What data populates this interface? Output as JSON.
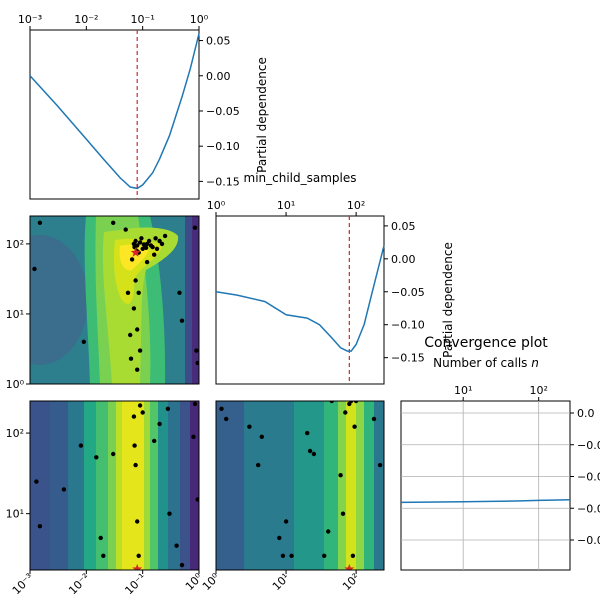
{
  "chart_data": [
    {
      "id": "pd_learning_rate",
      "type": "line",
      "title": "",
      "xlabel": "",
      "ylabel": "Partial dependence",
      "xscale": "log",
      "xlim": [
        0.001,
        1
      ],
      "ylim": [
        -0.175,
        0.065
      ],
      "xticklabels": [
        "10⁻³",
        "10⁻²",
        "10⁻¹",
        "10⁰"
      ],
      "yticklabels": [
        "0.05",
        "0.00",
        "−0.05",
        "−0.10",
        "−0.15"
      ],
      "x": [
        0.001,
        0.003,
        0.01,
        0.02,
        0.04,
        0.06,
        0.08,
        0.1,
        0.15,
        0.2,
        0.3,
        0.5,
        0.7,
        1.0
      ],
      "y": [
        0.0,
        -0.042,
        -0.09,
        -0.118,
        -0.145,
        -0.158,
        -0.16,
        -0.155,
        -0.138,
        -0.118,
        -0.085,
        -0.03,
        0.01,
        0.06
      ],
      "best_x": 0.08,
      "marker_color": "#d62728",
      "line_color": "#1f77b4"
    },
    {
      "id": "pd_min_child_samples",
      "type": "line",
      "title": "min_child_samples",
      "xlabel": "",
      "ylabel": "Partial dependence",
      "xscale": "log",
      "xlim": [
        1,
        250
      ],
      "ylim": [
        -0.19,
        0.065
      ],
      "xticklabels": [
        "10⁰",
        "10¹",
        "10²"
      ],
      "yticklabels": [
        "0.05",
        "0.00",
        "−0.05",
        "−0.10",
        "−0.15"
      ],
      "x": [
        1,
        2,
        5,
        10,
        20,
        30,
        45,
        60,
        75,
        85,
        100,
        130,
        170,
        250
      ],
      "y": [
        -0.05,
        -0.055,
        -0.065,
        -0.085,
        -0.09,
        -0.1,
        -0.12,
        -0.135,
        -0.14,
        -0.14,
        -0.13,
        -0.1,
        -0.05,
        0.02
      ],
      "best_x": 80,
      "marker_color": "#d62728",
      "line_color": "#1f77b4"
    },
    {
      "id": "contour_lr_vs_mcs",
      "type": "heatmap",
      "xscale": "log",
      "yscale": "log",
      "xlim": [
        0.001,
        1
      ],
      "ylim": [
        1,
        250
      ],
      "yticklabels": [
        "10⁰",
        "10¹",
        "10²"
      ],
      "samples": [
        [
          0.0015,
          200
        ],
        [
          0.0012,
          44
        ],
        [
          0.05,
          160
        ],
        [
          0.055,
          20
        ],
        [
          0.06,
          5
        ],
        [
          0.062,
          2.3
        ],
        [
          0.065,
          60
        ],
        [
          0.07,
          100
        ],
        [
          0.072,
          90
        ],
        [
          0.075,
          110
        ],
        [
          0.078,
          80
        ],
        [
          0.08,
          95
        ],
        [
          0.085,
          75
        ],
        [
          0.09,
          105
        ],
        [
          0.095,
          120
        ],
        [
          0.1,
          85
        ],
        [
          0.105,
          98
        ],
        [
          0.11,
          92
        ],
        [
          0.115,
          88
        ],
        [
          0.12,
          100
        ],
        [
          0.13,
          110
        ],
        [
          0.14,
          95
        ],
        [
          0.15,
          90
        ],
        [
          0.16,
          70
        ],
        [
          0.17,
          120
        ],
        [
          0.18,
          85
        ],
        [
          0.2,
          110
        ],
        [
          0.22,
          100
        ],
        [
          0.075,
          30
        ],
        [
          0.085,
          20
        ],
        [
          0.07,
          12
        ],
        [
          0.08,
          6
        ],
        [
          0.09,
          3
        ],
        [
          0.08,
          1.6
        ],
        [
          0.009,
          4
        ],
        [
          0.25,
          130
        ],
        [
          0.45,
          20
        ],
        [
          0.5,
          8
        ],
        [
          0.85,
          170
        ],
        [
          0.9,
          3
        ],
        [
          0.95,
          2
        ],
        [
          0.03,
          200
        ],
        [
          0.12,
          55
        ]
      ],
      "best": [
        0.075,
        75
      ],
      "best_color": "#d62728"
    },
    {
      "id": "contour_lr_vs_p3",
      "type": "heatmap",
      "xscale": "log",
      "yscale": "log",
      "xlim": [
        0.001,
        1
      ],
      "ylim": [
        2,
        250
      ],
      "xticklabels": [
        "10⁻³",
        "10⁻²",
        "10⁻¹",
        "10⁰"
      ],
      "yticklabels": [
        "10¹",
        "10²"
      ],
      "samples": [
        [
          0.0013,
          25
        ],
        [
          0.0015,
          7
        ],
        [
          0.004,
          20
        ],
        [
          0.008,
          70
        ],
        [
          0.015,
          50
        ],
        [
          0.018,
          5
        ],
        [
          0.02,
          3
        ],
        [
          0.03,
          55
        ],
        [
          0.07,
          160
        ],
        [
          0.072,
          70
        ],
        [
          0.075,
          40
        ],
        [
          0.08,
          8
        ],
        [
          0.085,
          3
        ],
        [
          0.09,
          220
        ],
        [
          0.1,
          180
        ],
        [
          0.16,
          80
        ],
        [
          0.2,
          130
        ],
        [
          0.28,
          200
        ],
        [
          0.3,
          10
        ],
        [
          0.4,
          4
        ],
        [
          0.5,
          2.3
        ],
        [
          0.8,
          90
        ],
        [
          0.85,
          230
        ],
        [
          0.95,
          15
        ]
      ],
      "best": [
        0.08,
        2.05
      ],
      "best_color": "#d62728"
    },
    {
      "id": "contour_mcs_vs_p3",
      "type": "heatmap",
      "xscale": "log",
      "yscale": "log",
      "xlim": [
        1,
        250
      ],
      "ylim": [
        2,
        250
      ],
      "xticklabels": [
        "10⁰",
        "10¹",
        "10²"
      ],
      "samples": [
        [
          1.2,
          200
        ],
        [
          1.4,
          150
        ],
        [
          3,
          120
        ],
        [
          4,
          40
        ],
        [
          4.5,
          90
        ],
        [
          8,
          5
        ],
        [
          9,
          3
        ],
        [
          10,
          8
        ],
        [
          12,
          3
        ],
        [
          20,
          100
        ],
        [
          22,
          60
        ],
        [
          25,
          55
        ],
        [
          35,
          3
        ],
        [
          40,
          6
        ],
        [
          45,
          250
        ],
        [
          60,
          30
        ],
        [
          65,
          10
        ],
        [
          70,
          180
        ],
        [
          80,
          230
        ],
        [
          85,
          250
        ],
        [
          90,
          3
        ],
        [
          95,
          120
        ],
        [
          100,
          250
        ],
        [
          180,
          150
        ],
        [
          220,
          40
        ]
      ],
      "best": [
        80,
        2.05
      ],
      "best_color": "#d62728"
    },
    {
      "id": "convergence",
      "type": "line",
      "title": "Convergence plot",
      "xlabel": "Number of calls n",
      "xlabel_prefix": "Number of calls ",
      "xlabel_var": "n",
      "xscale": "log",
      "xlim": [
        1.5,
        260
      ],
      "ylim": [
        -0.2,
        0.05
      ],
      "xticklabels": [
        "10¹",
        "10²"
      ],
      "yticklabels": [
        "0.0",
        "−0.0",
        "−0.0",
        "−0.0",
        "−0.0"
      ],
      "x": [
        1.5,
        10,
        50,
        100,
        260
      ],
      "y": [
        -0.1,
        -0.099,
        -0.098,
        -0.097,
        -0.096
      ],
      "grid": true,
      "line_color": "#1f77b4"
    }
  ]
}
